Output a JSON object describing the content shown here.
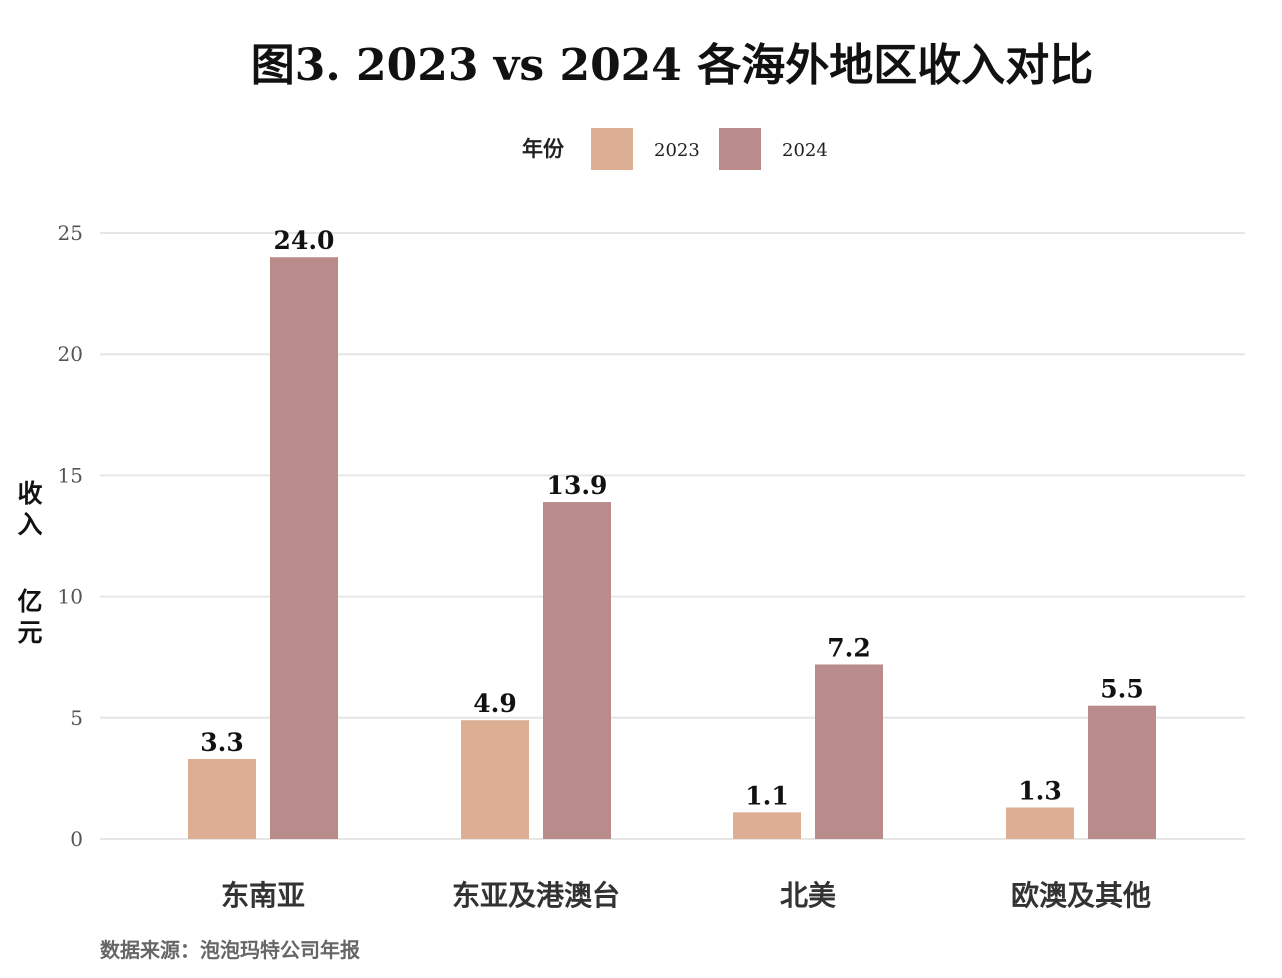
{
  "chart_data": {
    "type": "bar",
    "title": "图3. 2023 vs 2024 各海外地区收入对比",
    "categories": [
      "东南亚",
      "东亚及港澳台",
      "北美",
      "欧澳及其他"
    ],
    "series": [
      {
        "name": "2023",
        "values": [
          3.3,
          4.9,
          1.1,
          1.3
        ],
        "color": "#dcae94",
        "labels": [
          "3.3",
          "4.9",
          "1.1",
          "1.3"
        ]
      },
      {
        "name": "2024",
        "values": [
          24.0,
          13.9,
          7.2,
          5.5
        ],
        "color": "#b98b8a",
        "labels": [
          "24.0",
          "13.9",
          "7.2",
          "5.5"
        ]
      }
    ],
    "legend_title": "年份",
    "legend_position": "top-center",
    "ylabel": "收入 亿元",
    "ylabel_lines": [
      "收入",
      "亿元"
    ],
    "ylim": [
      0,
      25
    ],
    "yticks": [
      0,
      5,
      10,
      15,
      20,
      25
    ],
    "ytick_labels": [
      "0",
      "5",
      "10",
      "15",
      "20",
      "25"
    ],
    "grid": true,
    "source": "数据来源：泡泡玛特公司年报"
  }
}
